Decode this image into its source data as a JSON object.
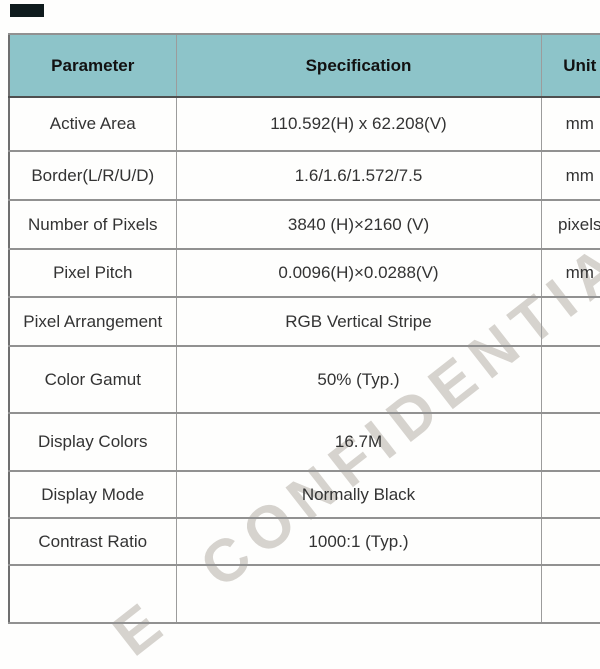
{
  "top_left_mark": {
    "color": "#0f1b1d"
  },
  "watermark": {
    "text": "E CONFIDENTIAL",
    "color": "#d6d3ce"
  },
  "table": {
    "header_bg": "#8dc4c9",
    "columns": [
      {
        "label": "Parameter"
      },
      {
        "label": "Specification"
      },
      {
        "label": "Unit"
      }
    ],
    "rows": [
      {
        "parameter": "Active Area",
        "specification": "110.592(H) x 62.208(V)",
        "unit": "mm"
      },
      {
        "parameter": "Border(L/R/U/D)",
        "specification": "1.6/1.6/1.572/7.5",
        "unit": "mm"
      },
      {
        "parameter": "Number of Pixels",
        "specification": "3840 (H)×2160 (V)",
        "unit": "pixels"
      },
      {
        "parameter": "Pixel Pitch",
        "specification": "0.0096(H)×0.0288(V)",
        "unit": "mm"
      },
      {
        "parameter": "Pixel Arrangement",
        "specification": "RGB Vertical Stripe",
        "unit": ""
      },
      {
        "parameter": "Color Gamut",
        "specification": "50% (Typ.)",
        "unit": ""
      },
      {
        "parameter": "Display Colors",
        "specification": "16.7M",
        "unit": ""
      },
      {
        "parameter": "Display Mode",
        "specification": "Normally Black",
        "unit": ""
      },
      {
        "parameter": "Contrast Ratio",
        "specification": "1000:1 (Typ.)",
        "unit": ""
      },
      {
        "parameter": "",
        "specification": "",
        "unit": ""
      }
    ]
  }
}
